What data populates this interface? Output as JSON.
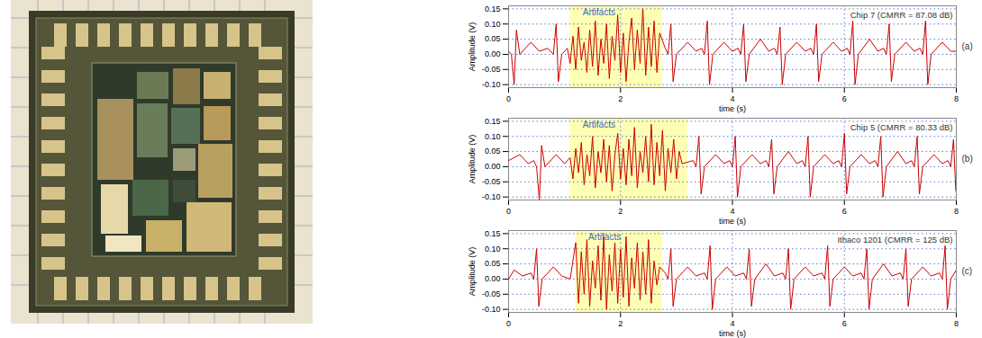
{
  "chart_data": [
    {
      "type": "line",
      "title": "Chip 7 (CMRR = 87.08 dB)",
      "panel_label": "(a)",
      "color": "#cc0000",
      "xlabel": "time (s)",
      "ylabel": "Amplitude (V)",
      "grid": true,
      "xlim": [
        0,
        8
      ],
      "ylim": [
        -0.11,
        0.16
      ],
      "xticks": [
        0,
        2,
        4,
        6,
        8
      ],
      "yticks": [
        {
          "value": -0.1,
          "label": "-0.10"
        },
        {
          "value": -0.05,
          "label": "-0.05"
        },
        {
          "value": 0,
          "label": "0.00"
        },
        {
          "value": 0.05,
          "label": "0.05"
        },
        {
          "value": 0.1,
          "label": "0.10"
        },
        {
          "value": 0.15,
          "label": "0.15"
        }
      ],
      "annotation": {
        "text": "Artifacts",
        "x": [
          1.1,
          2.75
        ]
      },
      "x": [
        0,
        0.05,
        0.1,
        0.14,
        0.2,
        0.4,
        0.55,
        0.7,
        0.8,
        0.85,
        0.89,
        0.95,
        1.05,
        1.1,
        1.15,
        1.2,
        1.25,
        1.3,
        1.35,
        1.4,
        1.45,
        1.5,
        1.55,
        1.6,
        1.65,
        1.7,
        1.75,
        1.8,
        1.85,
        1.9,
        1.95,
        2.0,
        2.05,
        2.1,
        2.15,
        2.2,
        2.25,
        2.3,
        2.35,
        2.4,
        2.45,
        2.5,
        2.55,
        2.6,
        2.65,
        2.7,
        2.8,
        2.85,
        2.9,
        2.94,
        3.0,
        3.2,
        3.35,
        3.45,
        3.5,
        3.55,
        3.59,
        3.65,
        3.85,
        4.0,
        4.1,
        4.15,
        4.2,
        4.24,
        4.3,
        4.5,
        4.65,
        4.75,
        4.8,
        4.85,
        4.89,
        4.95,
        5.15,
        5.3,
        5.4,
        5.45,
        5.5,
        5.54,
        5.6,
        5.8,
        5.95,
        6.05,
        6.1,
        6.15,
        6.19,
        6.25,
        6.45,
        6.6,
        6.7,
        6.75,
        6.8,
        6.84,
        6.9,
        7.1,
        7.25,
        7.35,
        7.4,
        7.45,
        7.49,
        7.55,
        7.75,
        7.9,
        8
      ],
      "values": [
        0.01,
        0,
        -0.1,
        0.08,
        0,
        0.04,
        0.01,
        0.02,
        0,
        0.1,
        -0.09,
        0,
        0.02,
        -0.03,
        0.06,
        -0.05,
        0.09,
        -0.02,
        0.04,
        -0.06,
        0.08,
        -0.04,
        0.11,
        -0.07,
        0.05,
        -0.03,
        0.1,
        -0.08,
        0.06,
        -0.02,
        0.13,
        -0.06,
        0.07,
        -0.09,
        0.04,
        0.12,
        -0.05,
        0.08,
        -0.03,
        0.15,
        -0.07,
        0.09,
        -0.04,
        0.11,
        -0.06,
        0.07,
        0.02,
        0,
        0.1,
        -0.09,
        0,
        0.04,
        0.01,
        0.02,
        0,
        0.11,
        -0.1,
        0,
        0.04,
        0.01,
        0.02,
        0,
        0.1,
        -0.09,
        0,
        0.05,
        0.01,
        0.02,
        0,
        0.09,
        -0.1,
        0,
        0.04,
        0.01,
        0.02,
        0,
        0.1,
        -0.09,
        0,
        0.04,
        0.01,
        0.02,
        0,
        0.11,
        -0.1,
        0,
        0.05,
        0.01,
        0.02,
        0,
        0.1,
        -0.09,
        0,
        0.04,
        0.01,
        0.02,
        0,
        0.11,
        -0.1,
        0,
        0.04,
        0.01,
        0.01
      ]
    },
    {
      "type": "line",
      "title": "Chip 5 (CMRR = 80.33 dB)",
      "panel_label": "(b)",
      "color": "#cc0000",
      "xlabel": "time (s)",
      "ylabel": "Amplitude (V)",
      "grid": true,
      "xlim": [
        0,
        8
      ],
      "ylim": [
        -0.11,
        0.16
      ],
      "xticks": [
        0,
        2,
        4,
        6,
        8
      ],
      "yticks": [
        {
          "value": -0.1,
          "label": "-0.10"
        },
        {
          "value": -0.05,
          "label": "-0.05"
        },
        {
          "value": 0,
          "label": "0.00"
        },
        {
          "value": 0.05,
          "label": "0.05"
        },
        {
          "value": 0.1,
          "label": "0.10"
        },
        {
          "value": 0.15,
          "label": "0.15"
        }
      ],
      "annotation": {
        "text": "Artifacts",
        "x": [
          1.1,
          3.2
        ]
      },
      "x": [
        0,
        0.2,
        0.35,
        0.45,
        0.5,
        0.55,
        0.59,
        0.65,
        0.85,
        1.0,
        1.1,
        1.15,
        1.2,
        1.25,
        1.3,
        1.35,
        1.4,
        1.45,
        1.5,
        1.55,
        1.6,
        1.65,
        1.7,
        1.75,
        1.8,
        1.85,
        1.9,
        1.95,
        2.0,
        2.05,
        2.1,
        2.15,
        2.2,
        2.25,
        2.3,
        2.35,
        2.4,
        2.45,
        2.5,
        2.55,
        2.6,
        2.65,
        2.7,
        2.75,
        2.8,
        2.85,
        2.9,
        2.95,
        3.0,
        3.05,
        3.1,
        3.3,
        3.35,
        3.4,
        3.44,
        3.5,
        3.7,
        3.85,
        3.95,
        4.0,
        4.05,
        4.09,
        4.15,
        4.35,
        4.5,
        4.6,
        4.65,
        4.7,
        4.74,
        4.8,
        5.0,
        5.15,
        5.25,
        5.3,
        5.35,
        5.39,
        5.45,
        5.65,
        5.8,
        5.9,
        5.95,
        6.0,
        6.04,
        6.1,
        6.3,
        6.45,
        6.55,
        6.6,
        6.65,
        6.69,
        6.75,
        6.95,
        7.1,
        7.2,
        7.25,
        7.3,
        7.34,
        7.4,
        7.6,
        7.75,
        7.85,
        7.9,
        7.95,
        7.99
      ],
      "values": [
        0.02,
        0.04,
        0.01,
        0.02,
        0,
        -0.11,
        0.07,
        0,
        0.04,
        0.01,
        0.03,
        -0.04,
        0.06,
        -0.02,
        0.08,
        -0.06,
        0.04,
        -0.03,
        0.1,
        -0.07,
        0.05,
        -0.02,
        0.09,
        -0.05,
        0.07,
        -0.08,
        0.04,
        0.11,
        -0.04,
        0.06,
        -0.06,
        0.09,
        -0.03,
        0.13,
        -0.07,
        0.05,
        -0.02,
        0.1,
        -0.05,
        0.14,
        -0.06,
        0.08,
        -0.03,
        0.12,
        -0.08,
        0.06,
        -0.02,
        0.09,
        -0.04,
        0.05,
        0.01,
        0.02,
        0,
        0.1,
        -0.09,
        0,
        0.04,
        0.01,
        0.02,
        0,
        0.1,
        -0.1,
        0,
        0.04,
        0.01,
        0.02,
        0,
        0.09,
        -0.09,
        0,
        0.05,
        0.01,
        0.02,
        0,
        0.1,
        -0.1,
        0,
        0.04,
        0.01,
        0.02,
        0,
        0.11,
        -0.09,
        0,
        0.04,
        0.01,
        0.02,
        0,
        0.1,
        -0.1,
        0,
        0.05,
        0.01,
        0.02,
        0,
        0.1,
        -0.09,
        0,
        0.04,
        0.01,
        0.02,
        0,
        0.09,
        -0.08
      ]
    },
    {
      "type": "line",
      "title": "Ithaco 1201 (CMRR = 125 dB)",
      "panel_label": "(c)",
      "color": "#cc0000",
      "xlabel": "time (s)",
      "ylabel": "Amplitude (V)",
      "grid": true,
      "xlim": [
        0,
        8
      ],
      "ylim": [
        -0.11,
        0.16
      ],
      "xticks": [
        0,
        2,
        4,
        6,
        8
      ],
      "yticks": [
        {
          "value": -0.1,
          "label": "-0.10"
        },
        {
          "value": -0.05,
          "label": "-0.05"
        },
        {
          "value": 0,
          "label": "0.00"
        },
        {
          "value": 0.05,
          "label": "0.05"
        },
        {
          "value": 0.1,
          "label": "0.10"
        },
        {
          "value": 0.15,
          "label": "0.15"
        }
      ],
      "annotation": {
        "text": "Artifacts",
        "x": [
          1.2,
          2.75
        ]
      },
      "x": [
        0,
        0.1,
        0.25,
        0.4,
        0.45,
        0.5,
        0.54,
        0.6,
        0.8,
        0.95,
        1.1,
        1.2,
        1.25,
        1.3,
        1.35,
        1.4,
        1.45,
        1.5,
        1.55,
        1.6,
        1.65,
        1.7,
        1.75,
        1.8,
        1.85,
        1.9,
        1.95,
        2.0,
        2.05,
        2.1,
        2.15,
        2.2,
        2.25,
        2.3,
        2.35,
        2.4,
        2.45,
        2.5,
        2.55,
        2.6,
        2.65,
        2.7,
        2.8,
        2.85,
        2.9,
        2.94,
        3.0,
        3.2,
        3.35,
        3.5,
        3.55,
        3.6,
        3.64,
        3.7,
        3.9,
        4.05,
        4.2,
        4.25,
        4.3,
        4.34,
        4.4,
        4.6,
        4.75,
        4.9,
        4.95,
        5.0,
        5.04,
        5.1,
        5.3,
        5.45,
        5.6,
        5.65,
        5.7,
        5.74,
        5.8,
        6.0,
        6.15,
        6.3,
        6.35,
        6.4,
        6.44,
        6.5,
        6.7,
        6.85,
        7.0,
        7.05,
        7.1,
        7.14,
        7.2,
        7.4,
        7.55,
        7.7,
        7.75,
        7.8,
        7.84,
        7.9,
        8
      ],
      "values": [
        0,
        0.03,
        0.01,
        0.02,
        0,
        0.1,
        -0.09,
        0,
        0.04,
        0.01,
        0,
        0.12,
        -0.08,
        0.09,
        -0.05,
        0.13,
        -0.09,
        0.06,
        -0.03,
        0.11,
        -0.07,
        0.14,
        -0.1,
        0.08,
        -0.04,
        0.12,
        -0.08,
        0.1,
        -0.06,
        0.14,
        -0.09,
        0.07,
        -0.03,
        0.12,
        -0.07,
        0.09,
        -0.05,
        0.13,
        -0.08,
        0.06,
        -0.02,
        0.04,
        0.02,
        0,
        0.1,
        -0.09,
        0,
        0.04,
        0.01,
        0.02,
        0,
        0.11,
        -0.1,
        0,
        0.04,
        0.01,
        0.02,
        0,
        0.1,
        -0.09,
        0,
        0.05,
        0.01,
        0.02,
        0,
        0.1,
        -0.1,
        0,
        0.04,
        0.01,
        0.02,
        0,
        0.11,
        -0.09,
        0,
        0.04,
        0.01,
        0.02,
        0,
        0.1,
        -0.1,
        0,
        0.05,
        0.01,
        0.02,
        0,
        0.1,
        -0.09,
        0,
        0.04,
        0.01,
        0.02,
        0,
        0.11,
        -0.1,
        0,
        0.03
      ]
    }
  ]
}
